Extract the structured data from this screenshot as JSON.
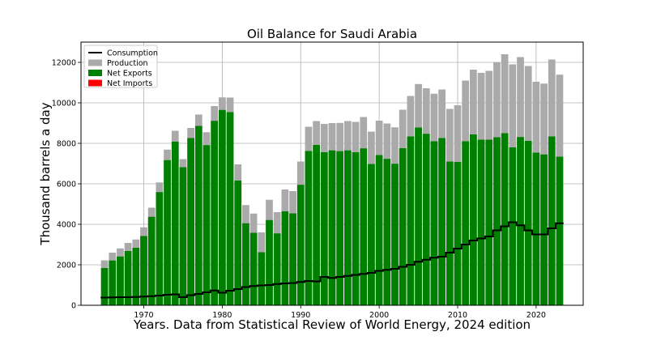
{
  "chart_data": {
    "type": "bar",
    "title": "Oil Balance for Saudi Arabia",
    "xlabel": "Years. Data from Statistical Review of World Energy, 2024 edition",
    "ylabel": "Thousand barrels a day",
    "xlim": [
      1962,
      2026
    ],
    "ylim": [
      0,
      13000
    ],
    "xticks": [
      1970,
      1980,
      1990,
      2000,
      2010,
      2020
    ],
    "yticks": [
      0,
      2000,
      4000,
      6000,
      8000,
      10000,
      12000
    ],
    "grid": true,
    "legend_position": "top-left",
    "x": [
      1965,
      1966,
      1967,
      1968,
      1969,
      1970,
      1971,
      1972,
      1973,
      1974,
      1975,
      1976,
      1977,
      1978,
      1979,
      1980,
      1981,
      1982,
      1983,
      1984,
      1985,
      1986,
      1987,
      1988,
      1989,
      1990,
      1991,
      1992,
      1993,
      1994,
      1995,
      1996,
      1997,
      1998,
      1999,
      2000,
      2001,
      2002,
      2003,
      2004,
      2005,
      2006,
      2007,
      2008,
      2009,
      2010,
      2011,
      2012,
      2013,
      2014,
      2015,
      2016,
      2017,
      2018,
      2019,
      2020,
      2021,
      2022,
      2023
    ],
    "series": [
      {
        "name": "Consumption",
        "color": "#000000",
        "style": "step",
        "values": [
          380,
          390,
          400,
          400,
          410,
          430,
          450,
          480,
          520,
          540,
          400,
          500,
          560,
          640,
          730,
          620,
          720,
          800,
          900,
          950,
          980,
          1000,
          1050,
          1080,
          1100,
          1150,
          1200,
          1180,
          1400,
          1350,
          1400,
          1450,
          1500,
          1550,
          1600,
          1700,
          1750,
          1800,
          1900,
          2000,
          2150,
          2250,
          2350,
          2400,
          2600,
          2800,
          3000,
          3200,
          3300,
          3400,
          3700,
          3900,
          4100,
          3950,
          3700,
          3500,
          3500,
          3800,
          4050
        ]
      },
      {
        "name": "Production",
        "color": "#aaaaaa",
        "values": [
          2220,
          2600,
          2810,
          3080,
          3250,
          3850,
          4820,
          6070,
          7690,
          8620,
          7220,
          8760,
          9420,
          8550,
          9840,
          10270,
          10260,
          6960,
          4950,
          4530,
          3600,
          5210,
          4600,
          5720,
          5640,
          7100,
          8820,
          9100,
          8960,
          9000,
          9010,
          9100,
          9060,
          9300,
          8580,
          9120,
          8980,
          8790,
          9660,
          10340,
          10930,
          10720,
          10450,
          10660,
          9700,
          9880,
          11100,
          11640,
          11480,
          11580,
          12000,
          12400,
          11900,
          12260,
          11820,
          11040,
          10950,
          12140,
          11390
        ]
      },
      {
        "name": "Net Exports",
        "color": "#008000",
        "values": [
          1840,
          2210,
          2410,
          2680,
          2840,
          3420,
          4370,
          5590,
          7170,
          8080,
          6820,
          8260,
          8860,
          7910,
          9110,
          9650,
          9540,
          6160,
          4050,
          3580,
          2620,
          4210,
          3550,
          4640,
          4540,
          5950,
          7620,
          7920,
          7560,
          7650,
          7610,
          7650,
          7560,
          7750,
          6980,
          7420,
          7230,
          6990,
          7760,
          8340,
          8780,
          8470,
          8100,
          8260,
          7100,
          7080,
          8100,
          8440,
          8180,
          8180,
          8300,
          8500,
          7800,
          8310,
          8120,
          7540,
          7450,
          8340,
          7340
        ]
      },
      {
        "name": "Net Imports",
        "color": "#ff0000",
        "values": [
          0,
          0,
          0,
          0,
          0,
          0,
          0,
          0,
          0,
          0,
          0,
          0,
          0,
          0,
          0,
          0,
          0,
          0,
          0,
          0,
          0,
          0,
          0,
          0,
          0,
          0,
          0,
          0,
          0,
          0,
          0,
          0,
          0,
          0,
          0,
          0,
          0,
          0,
          0,
          0,
          0,
          0,
          0,
          0,
          0,
          0,
          0,
          0,
          0,
          0,
          0,
          0,
          0,
          0,
          0,
          0,
          0,
          0,
          0
        ]
      }
    ]
  }
}
